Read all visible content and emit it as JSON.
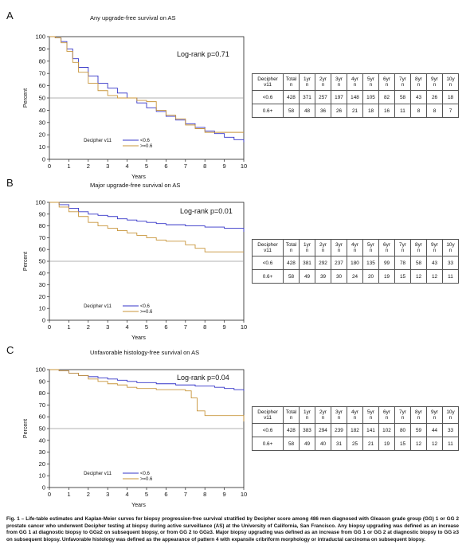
{
  "colors": {
    "low": "#3434c8",
    "high": "#c8953a",
    "ref": "#999999"
  },
  "risk_header": [
    "Decipher v11",
    "Total n",
    "1yr n",
    "2yr n",
    "3yr n",
    "4yr n",
    "5yr n",
    "6yr n",
    "7yr n",
    "8yr n",
    "9yr n",
    "10y n"
  ],
  "panels": [
    {
      "letter": "A",
      "title": "Any upgrade-free survival on AS",
      "logrank": "Log-rank p=0.71",
      "risk_rows": [
        [
          "<0.6",
          "428",
          "371",
          "257",
          "197",
          "148",
          "105",
          "82",
          "58",
          "43",
          "26",
          "18"
        ],
        [
          "0.6+",
          "58",
          "48",
          "36",
          "26",
          "21",
          "18",
          "16",
          "11",
          "8",
          "8",
          "7"
        ]
      ]
    },
    {
      "letter": "B",
      "title": "Major upgrade-free survival on AS",
      "logrank": "Log-rank p=0.01",
      "risk_rows": [
        [
          "<0.6",
          "428",
          "381",
          "292",
          "237",
          "180",
          "135",
          "99",
          "78",
          "58",
          "43",
          "33"
        ],
        [
          "0.6+",
          "58",
          "49",
          "39",
          "30",
          "24",
          "20",
          "19",
          "15",
          "12",
          "12",
          "11"
        ]
      ]
    },
    {
      "letter": "C",
      "title": "Unfavorable histology-free survival on AS",
      "logrank": "Log-rank p=0.04",
      "risk_rows": [
        [
          "<0.6",
          "428",
          "383",
          "294",
          "239",
          "182",
          "141",
          "102",
          "80",
          "59",
          "44",
          "33"
        ],
        [
          "0.6+",
          "58",
          "49",
          "40",
          "31",
          "25",
          "21",
          "19",
          "15",
          "12",
          "12",
          "11"
        ]
      ]
    }
  ],
  "chart_data": [
    {
      "type": "line",
      "title": "Any upgrade-free survival on AS",
      "xlabel": "Years",
      "ylabel": "Percent",
      "xlim": [
        0,
        10
      ],
      "ylim": [
        0,
        100
      ],
      "xticks": [
        "0",
        "1",
        "2",
        "3",
        "4",
        "5",
        "6",
        "7",
        "8",
        "9",
        "10"
      ],
      "yticks": [
        "0",
        "10",
        "20",
        "30",
        "40",
        "50",
        "60",
        "70",
        "80",
        "90",
        "100"
      ],
      "reference_line_y": 50,
      "legend_title": "Decipher v11",
      "series": [
        {
          "name": "<0.6",
          "x": [
            0,
            0.3,
            0.6,
            0.9,
            1.2,
            1.5,
            2,
            2.5,
            3,
            3.5,
            4,
            4.5,
            5,
            5.5,
            6,
            6.5,
            7,
            7.5,
            8,
            8.5,
            9,
            9.5,
            10
          ],
          "y": [
            100,
            99,
            96,
            90,
            82,
            75,
            68,
            62,
            58,
            54,
            50,
            46,
            42,
            39,
            35,
            32,
            29,
            26,
            23,
            21,
            18,
            16,
            14
          ]
        },
        {
          "name": ">=0.6",
          "x": [
            0,
            0.3,
            0.6,
            0.9,
            1.2,
            1.5,
            2,
            2.5,
            3,
            3.5,
            4,
            4.5,
            5,
            5.5,
            6,
            6.5,
            7,
            7.5,
            8,
            8.5,
            9,
            9.5,
            10
          ],
          "y": [
            100,
            99,
            95,
            88,
            79,
            71,
            62,
            56,
            52,
            50,
            50,
            48,
            47,
            40,
            36,
            33,
            28,
            25,
            22,
            22,
            22,
            22,
            22
          ]
        }
      ]
    },
    {
      "type": "line",
      "title": "Major upgrade-free survival on AS",
      "xlabel": "Years",
      "ylabel": "Percent",
      "xlim": [
        0,
        10
      ],
      "ylim": [
        0,
        100
      ],
      "xticks": [
        "0",
        "1",
        "2",
        "3",
        "4",
        "5",
        "6",
        "7",
        "8",
        "9",
        "10"
      ],
      "yticks": [
        "0",
        "10",
        "20",
        "30",
        "40",
        "50",
        "60",
        "70",
        "80",
        "90",
        "100"
      ],
      "reference_line_y": 50,
      "legend_title": "Decipher v11",
      "series": [
        {
          "name": "<0.6",
          "x": [
            0,
            0.5,
            1,
            1.5,
            2,
            2.5,
            3,
            3.5,
            4,
            4.5,
            5,
            5.5,
            6,
            6.5,
            7,
            7.5,
            8,
            8.5,
            9,
            9.5,
            10
          ],
          "y": [
            100,
            98,
            95,
            92,
            90,
            89,
            88,
            86,
            85,
            84,
            83,
            82,
            81,
            81,
            80,
            80,
            79,
            79,
            78,
            78,
            75
          ]
        },
        {
          "name": ">=0.6",
          "x": [
            0,
            0.5,
            1,
            1.5,
            2,
            2.5,
            3,
            3.5,
            4,
            4.5,
            5,
            5.5,
            6,
            6.5,
            7,
            7.5,
            8,
            8.5,
            9,
            9.5,
            10
          ],
          "y": [
            100,
            96,
            92,
            88,
            83,
            80,
            78,
            76,
            74,
            72,
            70,
            68,
            67,
            67,
            64,
            61,
            58,
            58,
            58,
            58,
            58
          ]
        }
      ]
    },
    {
      "type": "line",
      "title": "Unfavorable histology-free survival on AS",
      "xlabel": "Years",
      "ylabel": "Percent",
      "xlim": [
        0,
        10
      ],
      "ylim": [
        0,
        100
      ],
      "xticks": [
        "0",
        "1",
        "2",
        "3",
        "4",
        "5",
        "6",
        "7",
        "8",
        "9",
        "10"
      ],
      "yticks": [
        "0",
        "10",
        "20",
        "30",
        "40",
        "50",
        "60",
        "70",
        "80",
        "90",
        "100"
      ],
      "reference_line_y": 50,
      "legend_title": "Decipher v11",
      "series": [
        {
          "name": "<0.6",
          "x": [
            0,
            0.5,
            1,
            1.5,
            2,
            2.5,
            3,
            3.5,
            4,
            4.5,
            5,
            5.5,
            6,
            6.5,
            7,
            7.5,
            8,
            8.5,
            9,
            9.5,
            10
          ],
          "y": [
            100,
            99,
            97,
            95,
            94,
            93,
            92,
            91,
            90,
            89,
            89,
            88,
            88,
            87,
            87,
            86,
            86,
            85,
            84,
            83,
            82
          ]
        },
        {
          "name": ">=0.6",
          "x": [
            0,
            0.5,
            1,
            1.5,
            2,
            2.5,
            3,
            3.5,
            4,
            4.5,
            5,
            5.5,
            6,
            6.5,
            7,
            7.3,
            7.6,
            8,
            8.5,
            9,
            9.5,
            10
          ],
          "y": [
            100,
            99,
            97,
            95,
            92,
            90,
            88,
            87,
            85,
            84,
            84,
            83,
            83,
            83,
            82,
            76,
            65,
            61,
            61,
            61,
            61,
            56
          ]
        }
      ]
    }
  ],
  "caption": "Fig. 1 – Life-table estimates and Kaplan-Meier curves for biopsy progression-free survival stratified by Decipher score among 486 men diagnosed with Gleason grade group (GG) 1 or GG 2 prostate cancer who underwent Decipher testing at biopsy during active surveillance (AS) at the University of California, San Francisco. Any biopsy upgrading was defined as an increase from GG 1 at diagnostic biopsy to GG≥2 on subsequent biopsy, or from GG 2 to GG≥3. Major biopsy upgrading was defined as an increase from GG 1 or GG 2 at diagnostic biopsy to GG ≥3 on subsequent biopsy. Unfavorable histology was defined as the appearance of pattern 4 with expansile cribriform morphology or intraductal carcinoma on subsequent biopsy."
}
